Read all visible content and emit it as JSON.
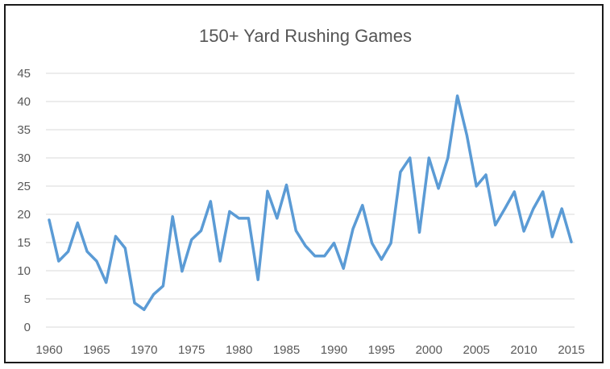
{
  "chart_data": {
    "type": "line",
    "title": "150+ Yard Rushing Games",
    "xlabel": "",
    "ylabel": "",
    "ylim": [
      0,
      45
    ],
    "xlim": [
      1960,
      2015
    ],
    "xticks": [
      1960,
      1965,
      1970,
      1975,
      1980,
      1985,
      1990,
      1995,
      2000,
      2005,
      2010,
      2015
    ],
    "yticks": [
      0,
      5,
      10,
      15,
      20,
      25,
      30,
      35,
      40,
      45
    ],
    "grid": true,
    "legend": "none",
    "series": [
      {
        "color": "#5b9bd5",
        "x": [
          1960,
          1961,
          1962,
          1963,
          1964,
          1965,
          1966,
          1967,
          1968,
          1969,
          1970,
          1971,
          1972,
          1973,
          1974,
          1975,
          1976,
          1977,
          1978,
          1979,
          1980,
          1981,
          1982,
          1983,
          1984,
          1985,
          1986,
          1987,
          1988,
          1989,
          1990,
          1991,
          1992,
          1993,
          1994,
          1995,
          1996,
          1997,
          1998,
          1999,
          2000,
          2001,
          2002,
          2003,
          2004,
          2005,
          2006,
          2007,
          2008,
          2009,
          2010,
          2011,
          2012,
          2013,
          2014,
          2015
        ],
        "values": [
          19,
          11.7,
          13.4,
          18.5,
          13.4,
          11.7,
          7.9,
          16.1,
          14,
          4.3,
          3.1,
          5.8,
          7.3,
          19.6,
          9.9,
          15.5,
          17.1,
          22.3,
          11.7,
          20.5,
          19.3,
          19.3,
          8.4,
          24.1,
          19.3,
          25.2,
          17.1,
          14.4,
          12.6,
          12.6,
          14.9,
          10.4,
          17.4,
          21.6,
          14.9,
          12,
          14.9,
          27.5,
          30,
          16.8,
          30,
          24.6,
          30,
          41,
          34,
          25,
          27,
          18.1,
          21,
          24,
          17,
          21,
          24,
          16,
          21,
          15.1
        ]
      }
    ]
  }
}
